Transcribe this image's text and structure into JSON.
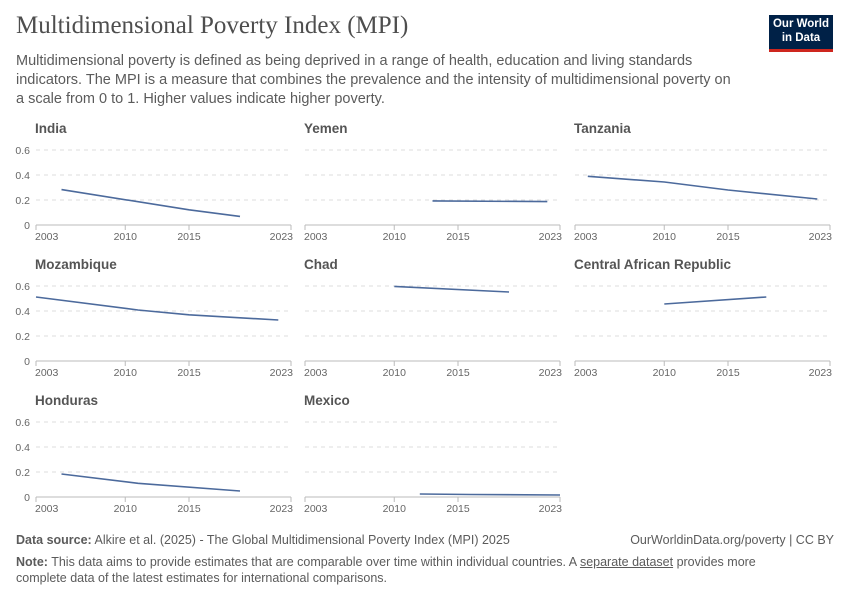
{
  "header": {
    "title": "Multidimensional Poverty Index (MPI)",
    "subtitle": "Multidimensional poverty is defined as being deprived in a range of health, education and living standards indicators. The MPI is a measure that combines the prevalence and the intensity of multidimensional poverty on a scale from 0 to 1. Higher values indicate higher poverty.",
    "logo": "Our World in Data"
  },
  "footer": {
    "source_label": "Data source:",
    "source": "Alkire et al. (2025) - The Global Multidimensional Poverty Index (MPI) 2025",
    "license": "OurWorldinData.org/poverty | CC BY",
    "note_label": "Note:",
    "note_pre": "This data aims to provide estimates that are comparable over time within individual countries. A",
    "note_link": "separate dataset",
    "note_post": "provides more complete data of the latest estimates for international comparisons."
  },
  "chart_data": {
    "type": "line",
    "layout": "small-multiples",
    "xlim": [
      2003,
      2023
    ],
    "ylim": [
      0,
      0.6
    ],
    "x_ticks": [
      "2003",
      "2010",
      "2015",
      "2023"
    ],
    "y_ticks": [
      "0",
      "0.2",
      "0.4",
      "0.6"
    ],
    "grid": true,
    "line_color": "#4c6a9c",
    "series": [
      {
        "name": "India",
        "x": [
          2005,
          2015,
          2019
        ],
        "y": [
          0.283,
          0.122,
          0.069
        ]
      },
      {
        "name": "Yemen",
        "x": [
          2013,
          2022
        ],
        "y": [
          0.193,
          0.187
        ]
      },
      {
        "name": "Tanzania",
        "x": [
          2004,
          2010,
          2015,
          2022
        ],
        "y": [
          0.39,
          0.344,
          0.28,
          0.208
        ]
      },
      {
        "name": "Mozambique",
        "x": [
          2003,
          2011,
          2015,
          2022
        ],
        "y": [
          0.512,
          0.408,
          0.37,
          0.328
        ]
      },
      {
        "name": "Chad",
        "x": [
          2010,
          2019
        ],
        "y": [
          0.597,
          0.552
        ]
      },
      {
        "name": "Central African Republic",
        "x": [
          2010,
          2018
        ],
        "y": [
          0.456,
          0.512
        ]
      },
      {
        "name": "Honduras",
        "x": [
          2005,
          2011,
          2019
        ],
        "y": [
          0.184,
          0.11,
          0.048
        ]
      },
      {
        "name": "Mexico",
        "x": [
          2012,
          2016,
          2023
        ],
        "y": [
          0.024,
          0.02,
          0.016
        ]
      }
    ]
  }
}
